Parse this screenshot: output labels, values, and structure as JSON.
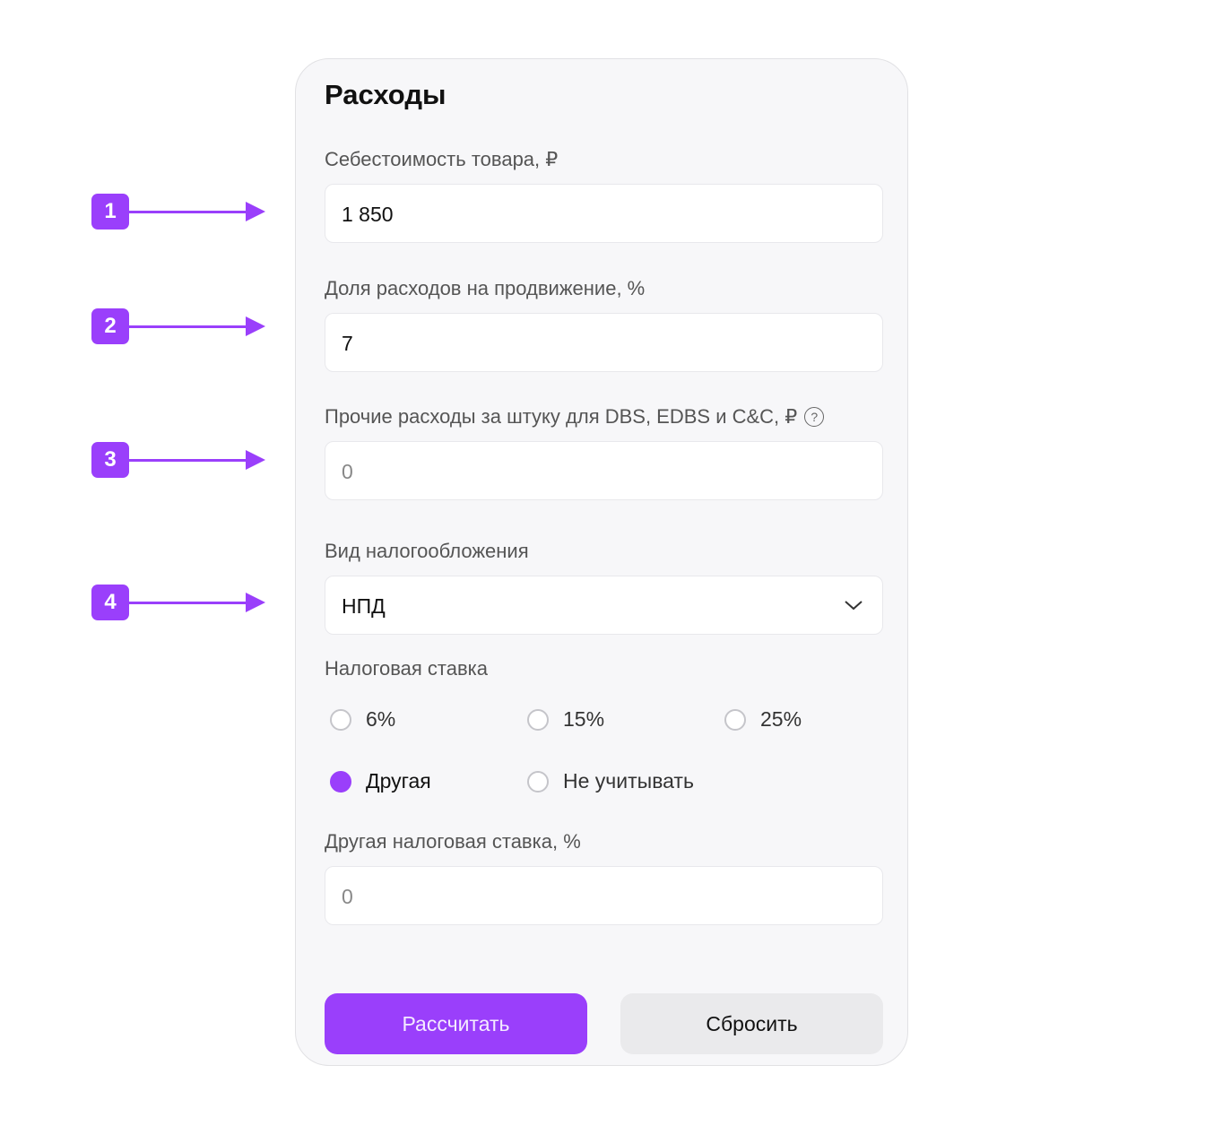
{
  "form": {
    "title": "Расходы",
    "cost_label": "Себестоимость товара, ₽",
    "cost_value": "1 850",
    "promo_label": "Доля расходов на продвижение, %",
    "promo_value": "7",
    "other_label": "Прочие расходы за штуку для DBS, EDBS и C&C, ₽",
    "other_help_icon": "?",
    "other_placeholder": "0",
    "tax_type_label": "Вид налогообложения",
    "tax_type_value": "НПД",
    "tax_rate_label": "Налоговая ставка",
    "tax_rates": [
      {
        "label": "6%",
        "selected": false
      },
      {
        "label": "15%",
        "selected": false
      },
      {
        "label": "25%",
        "selected": false
      },
      {
        "label": "Другая",
        "selected": true
      },
      {
        "label": "Не учитывать",
        "selected": false
      }
    ],
    "custom_rate_label": "Другая налоговая ставка, %",
    "custom_rate_placeholder": "0",
    "calculate_label": "Рассчитать",
    "reset_label": "Сбросить"
  },
  "annotations": [
    "1",
    "2",
    "3",
    "4"
  ],
  "colors": {
    "accent": "#9a3ffb",
    "card_bg": "#f7f7f9",
    "secondary_button": "#eaeaec"
  }
}
